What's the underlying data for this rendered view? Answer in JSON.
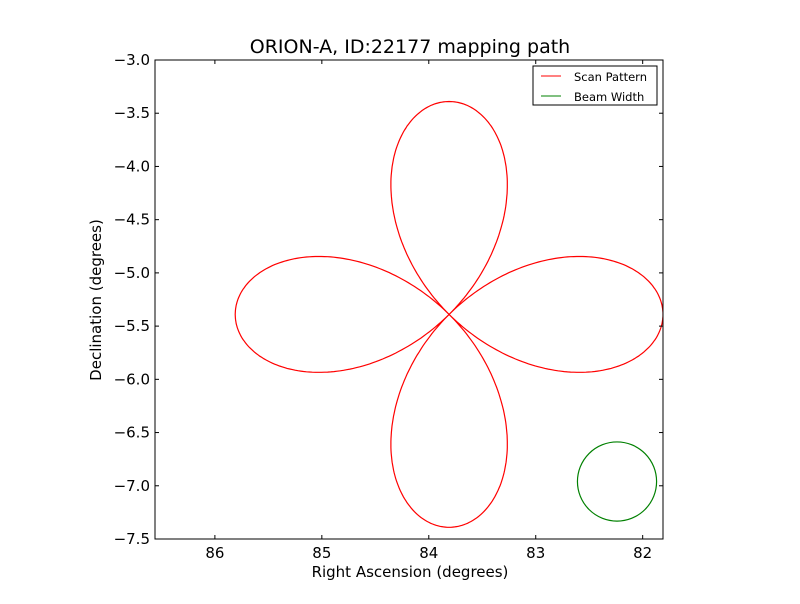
{
  "chart_data": {
    "type": "line",
    "title": "ORION-A, ID:22177 mapping path",
    "xlabel": "Right Ascension (degrees)",
    "ylabel": "Declination (degrees)",
    "xlim": [
      86.56,
      81.81
    ],
    "ylim": [
      -7.5,
      -3.0
    ],
    "xticks": [
      86,
      85,
      84,
      83,
      82
    ],
    "xtick_labels": [
      "86",
      "85",
      "84",
      "83",
      "82"
    ],
    "yticks": [
      -3.0,
      -3.5,
      -4.0,
      -4.5,
      -5.0,
      -5.5,
      -6.0,
      -6.5,
      -7.0,
      -7.5
    ],
    "ytick_labels": [
      "−3.0",
      "−3.5",
      "−4.0",
      "−4.5",
      "−5.0",
      "−5.5",
      "−6.0",
      "−6.5",
      "−7.0",
      "−7.5"
    ],
    "grid": false,
    "legend_position": "top-right",
    "series": [
      {
        "name": "Scan Pattern",
        "color": "#ff0000",
        "shape": "four-petal rose",
        "center": [
          83.81,
          -5.39
        ],
        "petal_length_deg": 2.0
      },
      {
        "name": "Beam Width",
        "color": "#008000",
        "shape": "circle",
        "center": [
          82.24,
          -6.96
        ],
        "radius_deg": 0.37
      }
    ]
  }
}
